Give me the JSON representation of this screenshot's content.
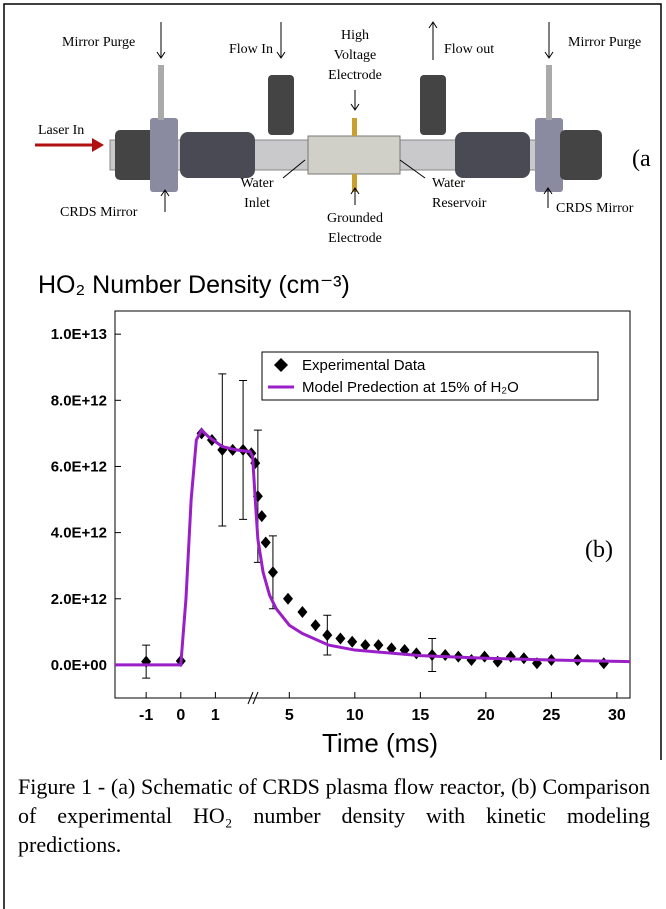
{
  "schematic": {
    "panel_label": "(a",
    "labels": {
      "mirror_purge_left": "Mirror Purge",
      "flow_in": "Flow In",
      "high_voltage": [
        "High",
        "Voltage",
        "Electrode"
      ],
      "flow_out": "Flow out",
      "mirror_purge_right": "Mirror Purge",
      "laser_in": "Laser In",
      "crds_mirror_left": "CRDS Mirror",
      "water_inlet": [
        "Water",
        "Inlet"
      ],
      "grounded": [
        "Grounded",
        "Electrode"
      ],
      "water_reservoir": [
        "Water",
        "Reservoir"
      ],
      "crds_mirror_right": "CRDS Mirror"
    }
  },
  "chart_data": {
    "type": "scatter-line",
    "title": "HO₂ Number Density (cm⁻³)",
    "x_label": "Time (ms)",
    "annotations": [
      "(b)"
    ],
    "xlim": [
      -1.9,
      31
    ],
    "x_break": 2,
    "xticks": [
      -1,
      0,
      1,
      5,
      10,
      15,
      20,
      25,
      30
    ],
    "ylim": [
      -1000000000000.0,
      10700000000000.0
    ],
    "yticks": [
      {
        "value": 0,
        "label": "0.0E+00"
      },
      {
        "value": 2000000000000.0,
        "label": "2.0E+12"
      },
      {
        "value": 4000000000000.0,
        "label": "4.0E+12"
      },
      {
        "value": 6000000000000.0,
        "label": "6.0E+12"
      },
      {
        "value": 8000000000000.0,
        "label": "8.0E+12"
      },
      {
        "value": 10000000000000.0,
        "label": "1.0E+13"
      }
    ],
    "legend": "top-right",
    "series": [
      {
        "name": "Experimental Data",
        "kind": "points",
        "color": "#000000",
        "x": [
          -1,
          0,
          0.6,
          0.9,
          1.2,
          1.5,
          1.8,
          2.1,
          2.4,
          2.6,
          2.9,
          3.2,
          3.75,
          4.9,
          6,
          7,
          7.9,
          8.9,
          9.8,
          10.8,
          11.8,
          12.8,
          13.8,
          14.7,
          15.9,
          16.9,
          17.9,
          18.9,
          19.9,
          20.9,
          21.9,
          22.9,
          23.9,
          25,
          27,
          29
        ],
        "values": [
          100000000000.0,
          120000000000.0,
          7000000000000.0,
          6800000000000.0,
          6500000000000.0,
          6500000000000.0,
          6500000000000.0,
          6400000000000.0,
          6100000000000.0,
          5100000000000.0,
          4500000000000.0,
          3700000000000.0,
          2800000000000.0,
          2000000000000.0,
          1600000000000.0,
          1200000000000.0,
          900000000000.0,
          800000000000.0,
          700000000000.0,
          600000000000.0,
          600000000000.0,
          500000000000.0,
          450000000000.0,
          350000000000.0,
          300000000000.0,
          300000000000.0,
          250000000000.0,
          150000000000.0,
          250000000000.0,
          100000000000.0,
          250000000000.0,
          200000000000.0,
          50000000000.0,
          150000000000.0,
          150000000000.0,
          50000000000.0
        ],
        "errors": [
          500000000000.0,
          null,
          null,
          null,
          2300000000000.0,
          null,
          2100000000000.0,
          null,
          null,
          2000000000000.0,
          null,
          null,
          1100000000000.0,
          null,
          null,
          null,
          600000000000.0,
          null,
          null,
          null,
          null,
          null,
          null,
          null,
          500000000000.0,
          null,
          null,
          null,
          null,
          null,
          null,
          null,
          null,
          null,
          null,
          null
        ]
      },
      {
        "name": "Model Predection at 15% of H₂O",
        "kind": "line",
        "color": "#9b1fc8",
        "x": [
          -1.9,
          0,
          0.15,
          0.3,
          0.45,
          0.6,
          0.8,
          1.2,
          1.6,
          2.0,
          2.2,
          2.4,
          2.6,
          3.0,
          3.5,
          4,
          5,
          6,
          8,
          10,
          15,
          20,
          25,
          31
        ],
        "values": [
          0,
          0,
          2000000000000.0,
          5000000000000.0,
          6800000000000.0,
          7100000000000.0,
          6900000000000.0,
          6600000000000.0,
          6500000000000.0,
          6450000000000.0,
          6300000000000.0,
          5000000000000.0,
          3800000000000.0,
          2800000000000.0,
          2100000000000.0,
          1700000000000.0,
          1200000000000.0,
          950000000000.0,
          600000000000.0,
          450000000000.0,
          280000000000.0,
          200000000000.0,
          150000000000.0,
          100000000000.0
        ]
      }
    ]
  },
  "caption": "Figure 1 - (a) Schematic of CRDS plasma flow reactor, (b) Comparison of experimental HO₂ number density with kinetic modeling predictions."
}
